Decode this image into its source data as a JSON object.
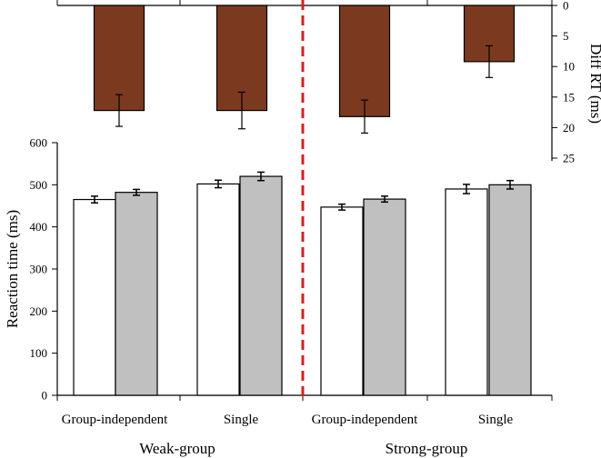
{
  "colors": {
    "diff_bar": "#7b3a1f",
    "condition_a": "#ffffff",
    "condition_b": "#c0c0c0",
    "divider": "#d42020"
  },
  "chart_data": [
    {
      "type": "bar",
      "name": "diff",
      "ylabel": "Diff RT (ms)",
      "ylim": [
        0,
        25
      ],
      "y_inverted": true,
      "y_axis_side": "right",
      "yticks": [
        0,
        5,
        10,
        15,
        20,
        25
      ],
      "categories": [
        "Group-independent",
        "Single",
        "Group-independent",
        "Single"
      ],
      "groups": [
        "Weak-group",
        "Strong-group"
      ],
      "values": [
        17.2,
        17.2,
        18.2,
        9.2
      ],
      "errors": [
        2.6,
        3.0,
        2.7,
        2.6
      ]
    },
    {
      "type": "bar",
      "name": "rt",
      "ylabel": "Reaction time (ms)",
      "ylim": [
        0,
        600
      ],
      "yticks": [
        0,
        100,
        200,
        300,
        400,
        500,
        600
      ],
      "categories": [
        "Group-independent",
        "Single",
        "Group-independent",
        "Single"
      ],
      "groups": [
        "Weak-group",
        "Strong-group"
      ],
      "series": [
        {
          "values": [
            465,
            502,
            447,
            490
          ],
          "errors": [
            8,
            9,
            7,
            11
          ]
        },
        {
          "values": [
            482,
            520,
            466,
            500
          ],
          "errors": [
            7,
            10,
            7,
            10
          ]
        }
      ]
    }
  ]
}
